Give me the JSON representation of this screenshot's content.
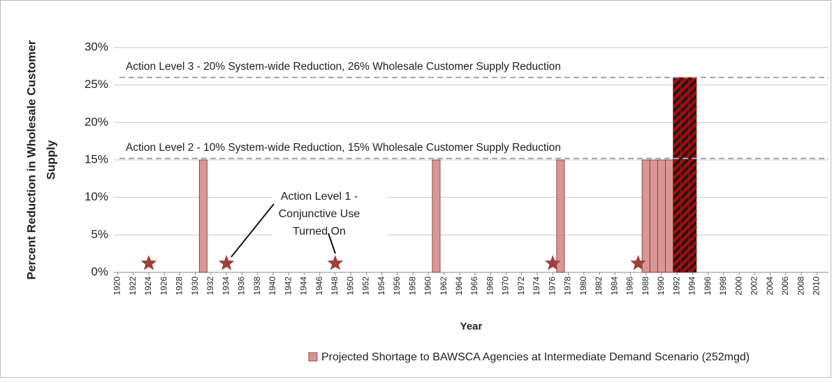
{
  "chart_data": {
    "type": "bar",
    "x_label": "Year",
    "y_label": [
      "Percent Reduction in Wholesale Customer",
      "Supply"
    ],
    "xlim": [
      1919.5,
      2011.5
    ],
    "xticks": [
      1920,
      1922,
      1924,
      1926,
      1928,
      1930,
      1932,
      1934,
      1936,
      1938,
      1940,
      1942,
      1944,
      1946,
      1948,
      1950,
      1952,
      1954,
      1956,
      1958,
      1960,
      1962,
      1964,
      1966,
      1968,
      1970,
      1972,
      1974,
      1976,
      1978,
      1980,
      1982,
      1984,
      1986,
      1988,
      1990,
      1992,
      1994,
      1996,
      1998,
      2000,
      2002,
      2004,
      2006,
      2008,
      2010
    ],
    "ylim": [
      0,
      30
    ],
    "yticks": [
      {
        "value": 0,
        "label": "0%"
      },
      {
        "value": 5,
        "label": "5%"
      },
      {
        "value": 10,
        "label": "10%"
      },
      {
        "value": 15,
        "label": "15%"
      },
      {
        "value": 20,
        "label": "20%"
      },
      {
        "value": 25,
        "label": "25%"
      },
      {
        "value": 30,
        "label": "30%"
      }
    ],
    "grid": true,
    "legend": "bottom",
    "series": [
      {
        "name": "Projected Shortage to BAWSCA Agencies at Intermediate Demand Scenario (252mgd)",
        "color": "#d99694",
        "edge_color": "#7a2f2d",
        "x": [
          1931,
          1961,
          1977,
          1988,
          1989,
          1990,
          1991,
          1992,
          1993,
          1994
        ],
        "values": [
          15,
          15,
          15,
          15,
          15,
          15,
          15,
          26,
          26,
          26
        ],
        "hatched": [
          false,
          false,
          false,
          false,
          false,
          false,
          false,
          true,
          true,
          true
        ]
      }
    ],
    "markers": {
      "color": "#a0403e",
      "x": [
        1924,
        1934,
        1948,
        1976,
        1987
      ],
      "values": [
        1.2,
        1.2,
        1.2,
        1.2,
        1.2
      ]
    },
    "reference_lines": [
      {
        "value": 26,
        "label": "Action Level 3 - 20% System-wide Reduction, 26% Wholesale Customer Supply Reduction"
      },
      {
        "value": 15.2,
        "label": "Action Level 2 - 10% System-wide Reduction, 15% Wholesale Customer Supply Reduction"
      }
    ],
    "annotation": [
      "Action Level 1 -",
      "Conjunctive Use",
      "Turned On"
    ]
  }
}
